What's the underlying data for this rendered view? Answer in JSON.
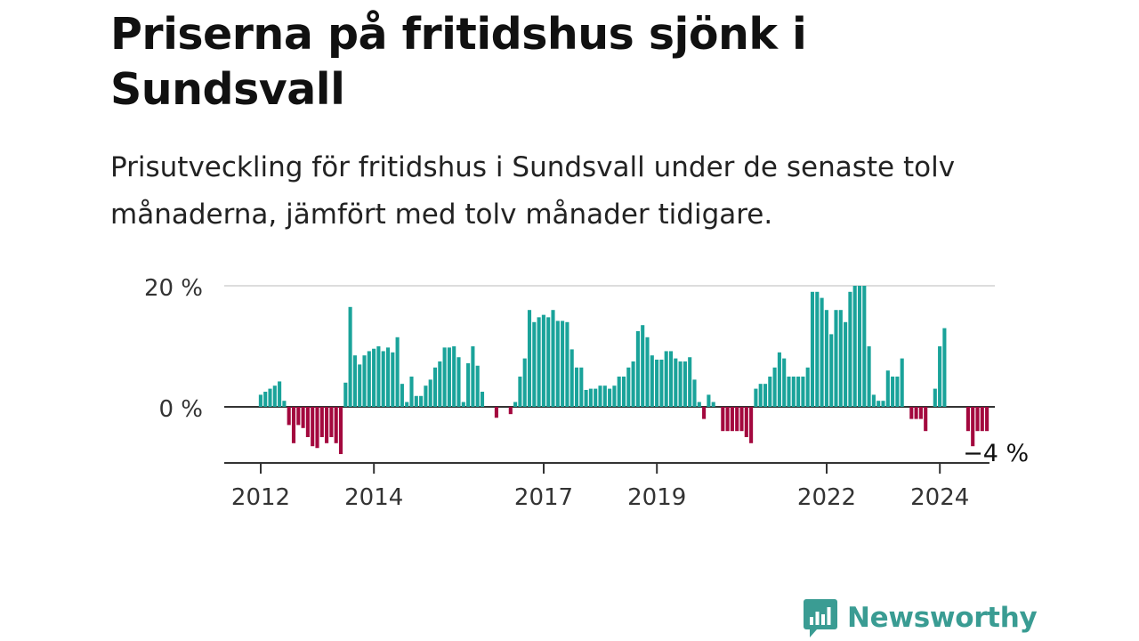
{
  "title": "Priserna på fritidshus sjönk i Sundsvall",
  "subtitle": "Prisutveckling för fritidshus i Sundsvall under de senaste tolv månaderna, jämfört med tolv månader tidigare.",
  "brand": {
    "name": "Newsworthy",
    "logo_icon": "bar-chart-speech-bubble-icon",
    "color": "#3a9c93"
  },
  "colors": {
    "positive": "#1aa39a",
    "negative": "#a3083e",
    "grid": "#dddddd",
    "axis": "#333333"
  },
  "chart_data": {
    "type": "bar",
    "title": "Priserna på fritidshus sjönk i Sundsvall",
    "xlabel": "",
    "ylabel": "",
    "ylim": [
      -9.5,
      20
    ],
    "y_ticks": [
      0,
      20
    ],
    "y_tick_labels": [
      "0 %",
      "20 %"
    ],
    "x_ticks": [
      2012,
      2014,
      2017,
      2019,
      2022,
      2024
    ],
    "x_tick_labels": [
      "2012",
      "2014",
      "2017",
      "2019",
      "2022",
      "2024"
    ],
    "grid": true,
    "x_start": "2012-01",
    "frequency": "monthly",
    "last_value_label": "−4 %",
    "values": [
      2.0,
      2.5,
      3.0,
      3.5,
      4.2,
      1.0,
      -3.0,
      -6.0,
      -3.0,
      -3.5,
      -5.0,
      -6.5,
      -6.8,
      -5.0,
      -6.0,
      -5.0,
      -6.0,
      -7.8,
      4.0,
      16.5,
      8.5,
      7.0,
      8.5,
      9.2,
      9.6,
      10.0,
      9.2,
      9.8,
      9.0,
      11.5,
      3.8,
      0.8,
      5.0,
      1.8,
      1.8,
      3.5,
      4.5,
      6.5,
      7.5,
      9.8,
      9.8,
      10.0,
      8.2,
      0.8,
      7.2,
      10.0,
      6.8,
      2.5,
      0.0,
      0.0,
      -1.8,
      0.0,
      0.0,
      -1.2,
      0.8,
      5.0,
      8.0,
      16.0,
      14.0,
      14.8,
      15.2,
      14.8,
      16.0,
      14.2,
      14.2,
      14.0,
      9.5,
      6.5,
      6.5,
      2.8,
      3.0,
      3.0,
      3.5,
      3.5,
      3.0,
      3.5,
      5.0,
      5.0,
      6.5,
      7.5,
      12.5,
      13.5,
      11.5,
      8.5,
      7.8,
      7.8,
      9.2,
      9.2,
      8.0,
      7.5,
      7.5,
      8.2,
      4.5,
      0.8,
      -2.0,
      2.0,
      0.8,
      0.0,
      -4.0,
      -4.0,
      -4.0,
      -4.0,
      -4.0,
      -5.0,
      -6.0,
      3.0,
      3.8,
      3.8,
      5.0,
      6.5,
      9.0,
      8.0,
      5.0,
      5.0,
      5.0,
      5.0,
      6.5,
      19.0,
      19.0,
      18.0,
      16.0,
      12.0,
      16.0,
      16.0,
      14.0,
      19.0,
      20.0,
      20.0,
      20.0,
      10.0,
      2.0,
      1.0,
      1.0,
      6.0,
      5.0,
      5.0,
      8.0,
      0.0,
      -2.0,
      -2.0,
      -2.0,
      -4.0,
      0.0,
      3.0,
      10.0,
      13.0,
      0.0,
      0.0,
      0.0,
      0.0,
      -4.0,
      -6.5,
      -4.0,
      -4.0,
      -4.0
    ]
  }
}
